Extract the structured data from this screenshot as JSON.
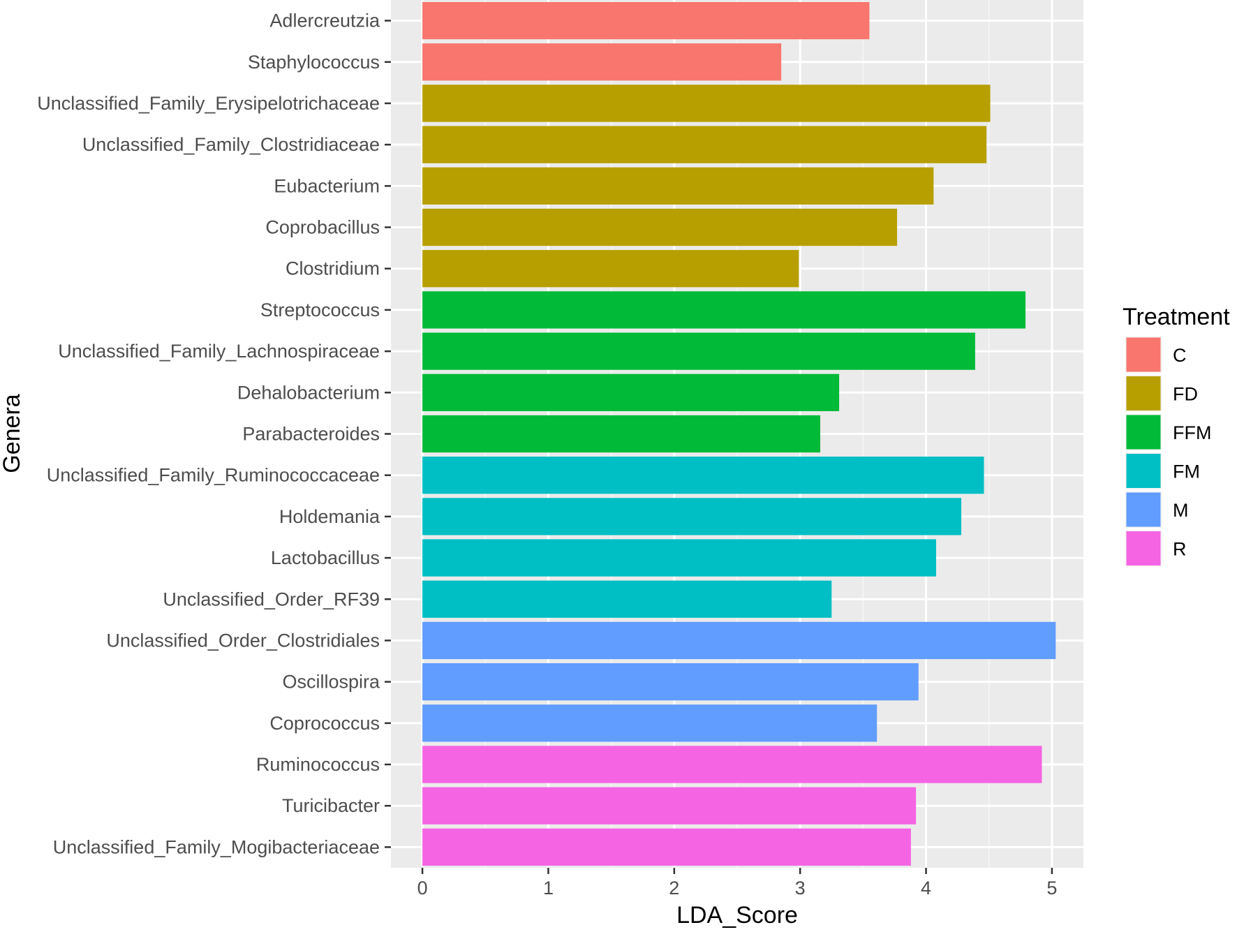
{
  "chart_data": {
    "type": "bar",
    "orientation": "horizontal",
    "title": "",
    "xlabel": "LDA_Score",
    "ylabel": "Genera",
    "xlim": [
      -0.25,
      5.25
    ],
    "xticks": [
      0,
      1,
      2,
      3,
      4,
      5
    ],
    "xtick_labels": [
      "0",
      "1",
      "2",
      "3",
      "4",
      "5"
    ],
    "grid": true,
    "legend": {
      "title": "Treatment",
      "position": "right",
      "entries": [
        {
          "name": "C",
          "color": "#F8766D"
        },
        {
          "name": "FD",
          "color": "#B79F00"
        },
        {
          "name": "FFM",
          "color": "#00BA38"
        },
        {
          "name": "FM",
          "color": "#00BFC4"
        },
        {
          "name": "M",
          "color": "#619CFF"
        },
        {
          "name": "R",
          "color": "#F564E3"
        }
      ]
    },
    "bars": [
      {
        "category": "Adlercreutzia",
        "value": 3.55,
        "group": "C"
      },
      {
        "category": "Staphylococcus",
        "value": 2.85,
        "group": "C"
      },
      {
        "category": "Unclassified_Family_Erysipelotrichaceae",
        "value": 4.51,
        "group": "FD"
      },
      {
        "category": "Unclassified_Family_Clostridiaceae",
        "value": 4.48,
        "group": "FD"
      },
      {
        "category": "Eubacterium",
        "value": 4.06,
        "group": "FD"
      },
      {
        "category": "Coprobacillus",
        "value": 3.77,
        "group": "FD"
      },
      {
        "category": "Clostridium",
        "value": 2.99,
        "group": "FD"
      },
      {
        "category": "Streptococcus",
        "value": 4.79,
        "group": "FFM"
      },
      {
        "category": "Unclassified_Family_Lachnospiraceae",
        "value": 4.39,
        "group": "FFM"
      },
      {
        "category": "Dehalobacterium",
        "value": 3.31,
        "group": "FFM"
      },
      {
        "category": "Parabacteroides",
        "value": 3.16,
        "group": "FFM"
      },
      {
        "category": "Unclassified_Family_Ruminococcaceae",
        "value": 4.46,
        "group": "FM"
      },
      {
        "category": "Holdemania",
        "value": 4.28,
        "group": "FM"
      },
      {
        "category": "Lactobacillus",
        "value": 4.08,
        "group": "FM"
      },
      {
        "category": "Unclassified_Order_RF39",
        "value": 3.25,
        "group": "FM"
      },
      {
        "category": "Unclassified_Order_Clostridiales",
        "value": 5.03,
        "group": "M"
      },
      {
        "category": "Oscillospira",
        "value": 3.94,
        "group": "M"
      },
      {
        "category": "Coprococcus",
        "value": 3.61,
        "group": "M"
      },
      {
        "category": "Ruminococcus",
        "value": 4.92,
        "group": "R"
      },
      {
        "category": "Turicibacter",
        "value": 3.92,
        "group": "R"
      },
      {
        "category": "Unclassified_Family_Mogibacteriaceae",
        "value": 3.88,
        "group": "R"
      }
    ]
  }
}
